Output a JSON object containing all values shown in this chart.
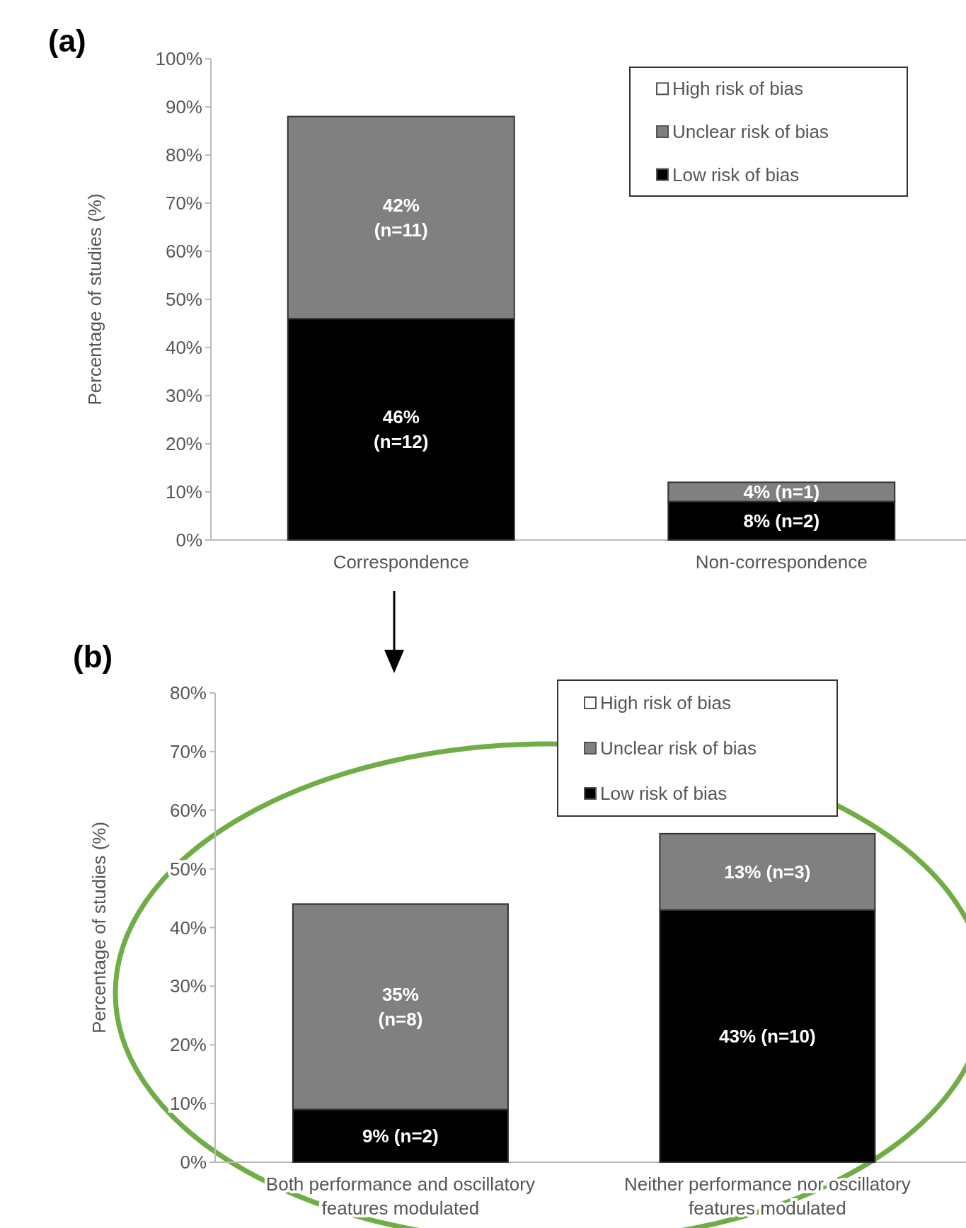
{
  "chart_data": [
    {
      "type": "bar",
      "title": "(a)",
      "ylabel": "Percentage of studies (%)",
      "categories": [
        "Correspondence",
        "Non-correspondence"
      ],
      "stacked": true,
      "ylim": [
        0,
        100
      ],
      "yticks": [
        {
          "value": 0,
          "label": "0%"
        },
        {
          "value": 10,
          "label": "10%"
        },
        {
          "value": 20,
          "label": "20%"
        },
        {
          "value": 30,
          "label": "30%"
        },
        {
          "value": 40,
          "label": "40%"
        },
        {
          "value": 50,
          "label": "50%"
        },
        {
          "value": 60,
          "label": "60%"
        },
        {
          "value": 70,
          "label": "70%"
        },
        {
          "value": 80,
          "label": "80%"
        },
        {
          "value": 90,
          "label": "90%"
        },
        {
          "value": 100,
          "label": "100%"
        }
      ],
      "grid": false,
      "legend": "top right",
      "series": [
        {
          "name": "Low risk of bias",
          "color": "#000000",
          "values": [
            46,
            8
          ],
          "value_labels": [
            "46%\n(n=12)",
            "8% (n=2)"
          ]
        },
        {
          "name": "Unclear risk of bias",
          "color": "#808080",
          "values": [
            42,
            4
          ],
          "value_labels": [
            "42%\n(n=11)",
            "4% (n=1)"
          ]
        },
        {
          "name": "High risk of bias",
          "color": "#ffffff",
          "values": [
            0,
            0
          ],
          "value_labels": [
            null,
            null
          ]
        }
      ]
    },
    {
      "type": "bar",
      "title": "(b)",
      "ylabel": "Percentage of studies (%)",
      "categories": [
        "Both performance and oscillatory features modulated",
        "Neither performance nor oscillatory features modulated"
      ],
      "stacked": true,
      "ylim": [
        0,
        80
      ],
      "yticks": [
        {
          "value": 0,
          "label": "0%"
        },
        {
          "value": 10,
          "label": "10%"
        },
        {
          "value": 20,
          "label": "20%"
        },
        {
          "value": 30,
          "label": "30%"
        },
        {
          "value": 40,
          "label": "40%"
        },
        {
          "value": 50,
          "label": "50%"
        },
        {
          "value": 60,
          "label": "60%"
        },
        {
          "value": 70,
          "label": "70%"
        },
        {
          "value": 80,
          "label": "80%"
        }
      ],
      "grid": false,
      "legend": "top right",
      "series": [
        {
          "name": "Low risk of bias",
          "color": "#000000",
          "values": [
            9,
            43
          ],
          "value_labels": [
            "9% (n=2)",
            "43% (n=10)"
          ]
        },
        {
          "name": "Unclear risk of bias",
          "color": "#808080",
          "values": [
            35,
            13
          ],
          "value_labels": [
            "35%\n(n=8)",
            "13% (n=3)"
          ]
        },
        {
          "name": "High risk of bias",
          "color": "#ffffff",
          "values": [
            0,
            0
          ],
          "value_labels": [
            null,
            null
          ]
        }
      ]
    }
  ]
}
